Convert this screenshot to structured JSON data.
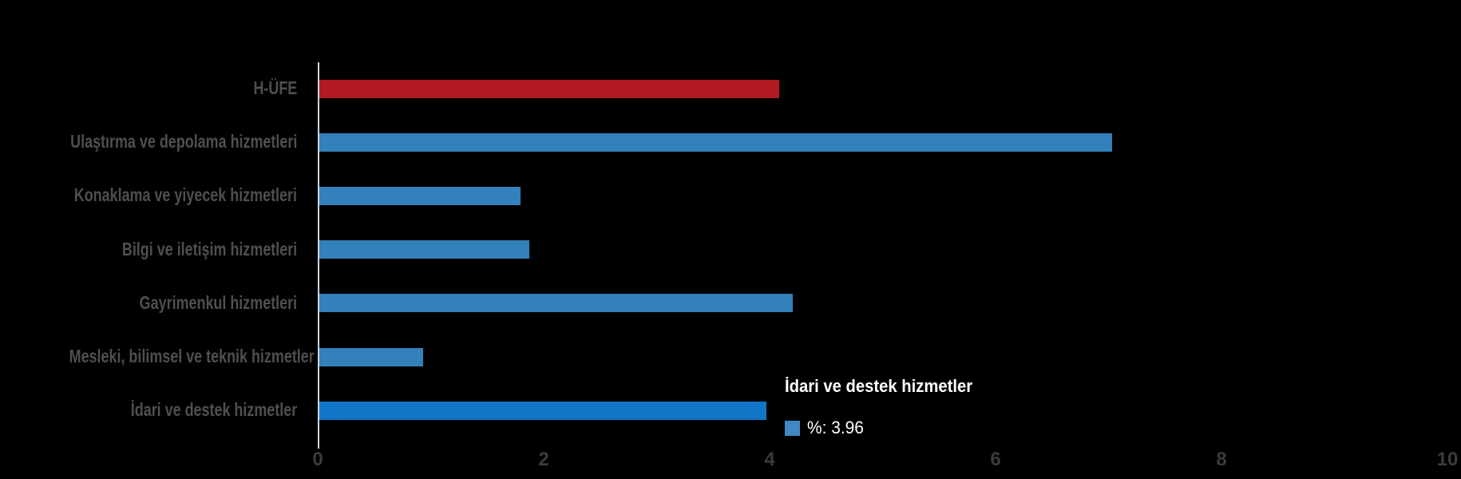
{
  "chart_data": {
    "type": "bar",
    "orientation": "horizontal",
    "title": "",
    "xlabel": "",
    "ylabel": "",
    "grid": false,
    "xlim": [
      0,
      10
    ],
    "x_ticks": [
      "0",
      "2",
      "4",
      "6",
      "8",
      "10"
    ],
    "x_tick_values": [
      0,
      2,
      4,
      6,
      8,
      10
    ],
    "categories": [
      "H-ÜFE",
      "Ulaştırma ve depolama hizmetleri",
      "Konaklama ve yiyecek hizmetleri",
      "Bilgi ve iletişim hizmetleri",
      "Gayrimenkul hizmetleri",
      "Mesleki, bilimsel ve teknik hizmetler",
      "İdari ve destek hizmetler"
    ],
    "values": [
      4.07,
      7.02,
      1.78,
      1.86,
      4.19,
      0.92,
      3.96
    ],
    "bar_colors": [
      "#b11a21",
      "#3380bb",
      "#3380bb",
      "#3380bb",
      "#3380bb",
      "#3380bb",
      "#1276c8"
    ],
    "highlighted_category": "İdari ve destek hizmetler"
  },
  "tooltip": {
    "title": "İdari ve destek hizmetler",
    "series_label": "%",
    "value": "3.96",
    "text": "%: 3.96",
    "swatch_color": "#4187c3"
  },
  "colors": {
    "background": "#000000",
    "axis_line": "#ccd5e0",
    "category_label": "#4f4f4f",
    "tick_label": "#3b3b3b",
    "tooltip_text": "#ffffff",
    "bar_default": "#3380bb",
    "bar_highlight": "#1276c8",
    "bar_hufe": "#b11a21"
  }
}
